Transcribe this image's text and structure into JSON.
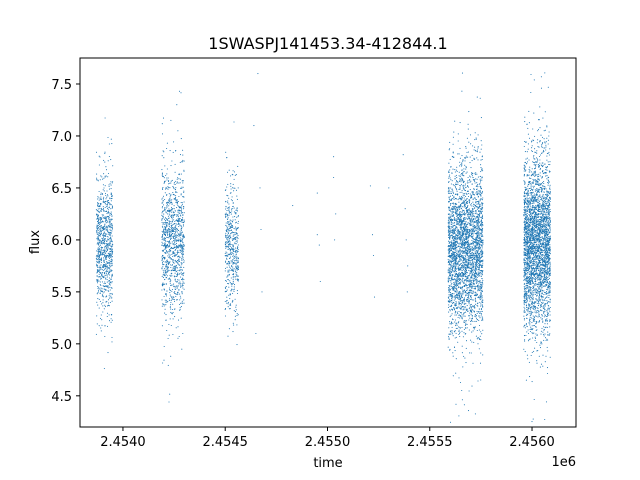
{
  "chart_data": {
    "type": "scatter",
    "title": "1SWASPJ141453.34-412844.1",
    "xlabel": "time",
    "ylabel": "flux",
    "x_offset_label": "1e6",
    "xlim": [
      2453790,
      2456215
    ],
    "ylim": [
      4.2,
      7.75
    ],
    "x_ticks": [
      2454000,
      2454500,
      2455000,
      2455500,
      2456000
    ],
    "x_tick_labels": [
      "2.4540",
      "2.4545",
      "2.4550",
      "2.4555",
      "2.4560"
    ],
    "y_ticks": [
      4.5,
      5.0,
      5.5,
      6.0,
      6.5,
      7.0,
      7.5
    ],
    "y_tick_labels": [
      "4.5",
      "5.0",
      "5.5",
      "6.0",
      "6.5",
      "7.0",
      "7.5"
    ],
    "grid": false,
    "point_color": "#1f77b4",
    "clusters": [
      {
        "x_range": [
          2453870,
          2453950
        ],
        "y_mean": 5.95,
        "y_sd": 0.32,
        "count": 900
      },
      {
        "x_range": [
          2454190,
          2454300
        ],
        "y_mean": 5.98,
        "y_sd": 0.35,
        "count": 1100
      },
      {
        "x_range": [
          2454500,
          2454565
        ],
        "y_mean": 5.92,
        "y_sd": 0.3,
        "count": 500
      },
      {
        "x_range": [
          2455590,
          2455760
        ],
        "y_mean": 5.92,
        "y_sd": 0.38,
        "count": 3200
      },
      {
        "x_range": [
          2455960,
          2456090
        ],
        "y_mean": 5.95,
        "y_sd": 0.4,
        "count": 3200
      }
    ],
    "sparse_points": [
      {
        "x": 2454660,
        "y": 7.6
      },
      {
        "x": 2454670,
        "y": 6.5
      },
      {
        "x": 2454675,
        "y": 6.1
      },
      {
        "x": 2454650,
        "y": 5.1
      },
      {
        "x": 2454640,
        "y": 7.1
      },
      {
        "x": 2454680,
        "y": 5.5
      },
      {
        "x": 2454830,
        "y": 6.33
      },
      {
        "x": 2454950,
        "y": 6.45
      },
      {
        "x": 2454950,
        "y": 6.05
      },
      {
        "x": 2454960,
        "y": 5.95
      },
      {
        "x": 2454965,
        "y": 5.6
      },
      {
        "x": 2455030,
        "y": 6.8
      },
      {
        "x": 2455030,
        "y": 6.6
      },
      {
        "x": 2455040,
        "y": 6.25
      },
      {
        "x": 2455035,
        "y": 6.0
      },
      {
        "x": 2455220,
        "y": 6.05
      },
      {
        "x": 2455225,
        "y": 5.85
      },
      {
        "x": 2455230,
        "y": 5.45
      },
      {
        "x": 2455210,
        "y": 6.52
      },
      {
        "x": 2455300,
        "y": 6.5
      },
      {
        "x": 2455370,
        "y": 6.82
      },
      {
        "x": 2455380,
        "y": 6.3
      },
      {
        "x": 2455385,
        "y": 6.0
      },
      {
        "x": 2455390,
        "y": 5.5
      },
      {
        "x": 2455392,
        "y": 5.75
      }
    ]
  }
}
